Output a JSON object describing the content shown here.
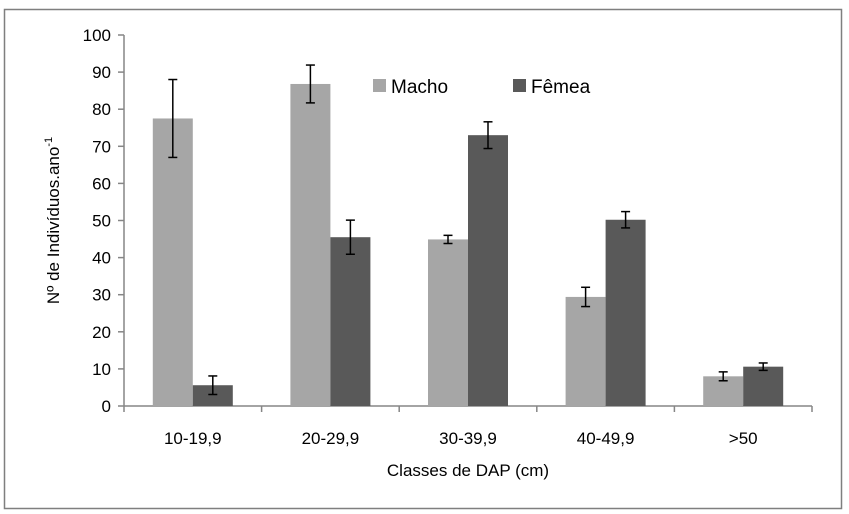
{
  "chart_data": {
    "type": "bar",
    "title": "",
    "xlabel": "Classes de DAP (cm)",
    "ylabel": "Nº de Indivíduos.ano",
    "ylabel_superscript": "-1",
    "ylim": [
      0,
      100
    ],
    "y_ticks": [
      0,
      10,
      20,
      30,
      40,
      50,
      60,
      70,
      80,
      90,
      100
    ],
    "categories": [
      "10-19,9",
      "20-29,9",
      "30-39,9",
      "40-49,9",
      ">50"
    ],
    "series": [
      {
        "name": "Macho",
        "color": "#a6a6a6",
        "values": [
          77.5,
          86.8,
          44.9,
          29.4,
          8.0
        ],
        "error": [
          10.5,
          5.1,
          1.1,
          2.6,
          1.2
        ]
      },
      {
        "name": "Fêmea",
        "color": "#595959",
        "values": [
          5.6,
          45.5,
          73.0,
          50.2,
          10.6
        ],
        "error": [
          2.5,
          4.6,
          3.6,
          2.2,
          1.0
        ]
      }
    ],
    "grid": false,
    "legend_position": "top-center"
  }
}
